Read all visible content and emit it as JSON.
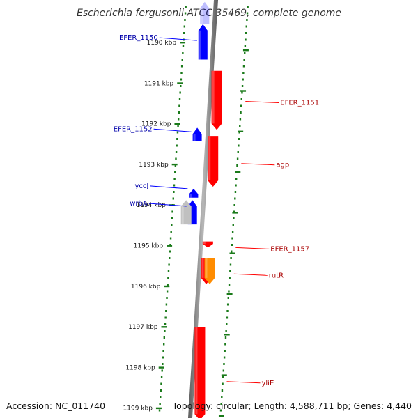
{
  "title": "Escherichia fergusonii ATCC 35469, complete genome",
  "footer": {
    "accession": "Accession: NC_011740",
    "topology": "Topology: circular; Length: 4,588,711 bp; Genes: 4,440"
  },
  "colors": {
    "forward": "#0000ff",
    "reverse": "#ff0000",
    "other": "#ff8c00",
    "pseudo": "#c0c0c0",
    "backbone": "#888888",
    "dots": "#1a7a1a",
    "label_forward": "#0000aa",
    "label_reverse": "#aa0000"
  },
  "ticks": [
    {
      "kbp": 1190,
      "label": "1190 kbp"
    },
    {
      "kbp": 1191,
      "label": "1191 kbp"
    },
    {
      "kbp": 1192,
      "label": "1192 kbp"
    },
    {
      "kbp": 1193,
      "label": "1193 kbp"
    },
    {
      "kbp": 1194,
      "label": "1194 kbp"
    },
    {
      "kbp": 1195,
      "label": "1195 kbp"
    },
    {
      "kbp": 1196,
      "label": "1196 kbp"
    },
    {
      "kbp": 1197,
      "label": "1197 kbp"
    },
    {
      "kbp": 1198,
      "label": "1198 kbp"
    },
    {
      "kbp": 1199,
      "label": "1199 kbp"
    }
  ],
  "genes": [
    {
      "name": "EFER_1150",
      "strand": "+",
      "start": 1189.55,
      "end": 1190.42,
      "color": "forward",
      "lane": 0,
      "label_kbp": 1189.95
    },
    {
      "name": "",
      "strand": "+",
      "start": 1189.0,
      "end": 1189.55,
      "color": "forward",
      "lane": 0,
      "label_kbp": 0,
      "pale": true
    },
    {
      "name": "EFER_1151",
      "strand": "-",
      "start": 1190.7,
      "end": 1192.15,
      "color": "reverse",
      "lane": 1,
      "label_kbp": 1191.45
    },
    {
      "name": "EFER_1152",
      "strand": "+",
      "start": 1192.1,
      "end": 1192.43,
      "color": "forward",
      "lane": 0,
      "label_kbp": 1192.2
    },
    {
      "name": "agp",
      "strand": "-",
      "start": 1192.3,
      "end": 1193.55,
      "color": "reverse",
      "lane": 1,
      "label_kbp": 1192.98
    },
    {
      "name": "yccJ",
      "strand": "+",
      "start": 1193.6,
      "end": 1193.82,
      "color": "forward",
      "lane": 0,
      "label_kbp": 1193.6
    },
    {
      "name": "wrbA",
      "strand": "+",
      "start": 1193.88,
      "end": 1194.48,
      "color": "forward",
      "lane": 0,
      "label_kbp": 1194.03
    },
    {
      "name": "",
      "strand": "+",
      "start": 1193.88,
      "end": 1194.48,
      "color": "pseudo",
      "lane": 2,
      "label_kbp": 0
    },
    {
      "name": "EFER_1157",
      "strand": "-",
      "start": 1194.9,
      "end": 1195.05,
      "color": "reverse",
      "lane": 1,
      "label_kbp": 1195.05
    },
    {
      "name": "rutR",
      "strand": "-",
      "start": 1195.3,
      "end": 1195.95,
      "color": "reverse",
      "lane": 1,
      "label_kbp": 1195.7
    },
    {
      "name": "",
      "strand": "-",
      "start": 1195.3,
      "end": 1195.95,
      "color": "other",
      "lane": 3,
      "label_kbp": 0
    },
    {
      "name": "yliE",
      "strand": "-",
      "start": 1197.0,
      "end": 1199.3,
      "color": "reverse",
      "lane": 1,
      "label_kbp": 1198.35
    }
  ]
}
